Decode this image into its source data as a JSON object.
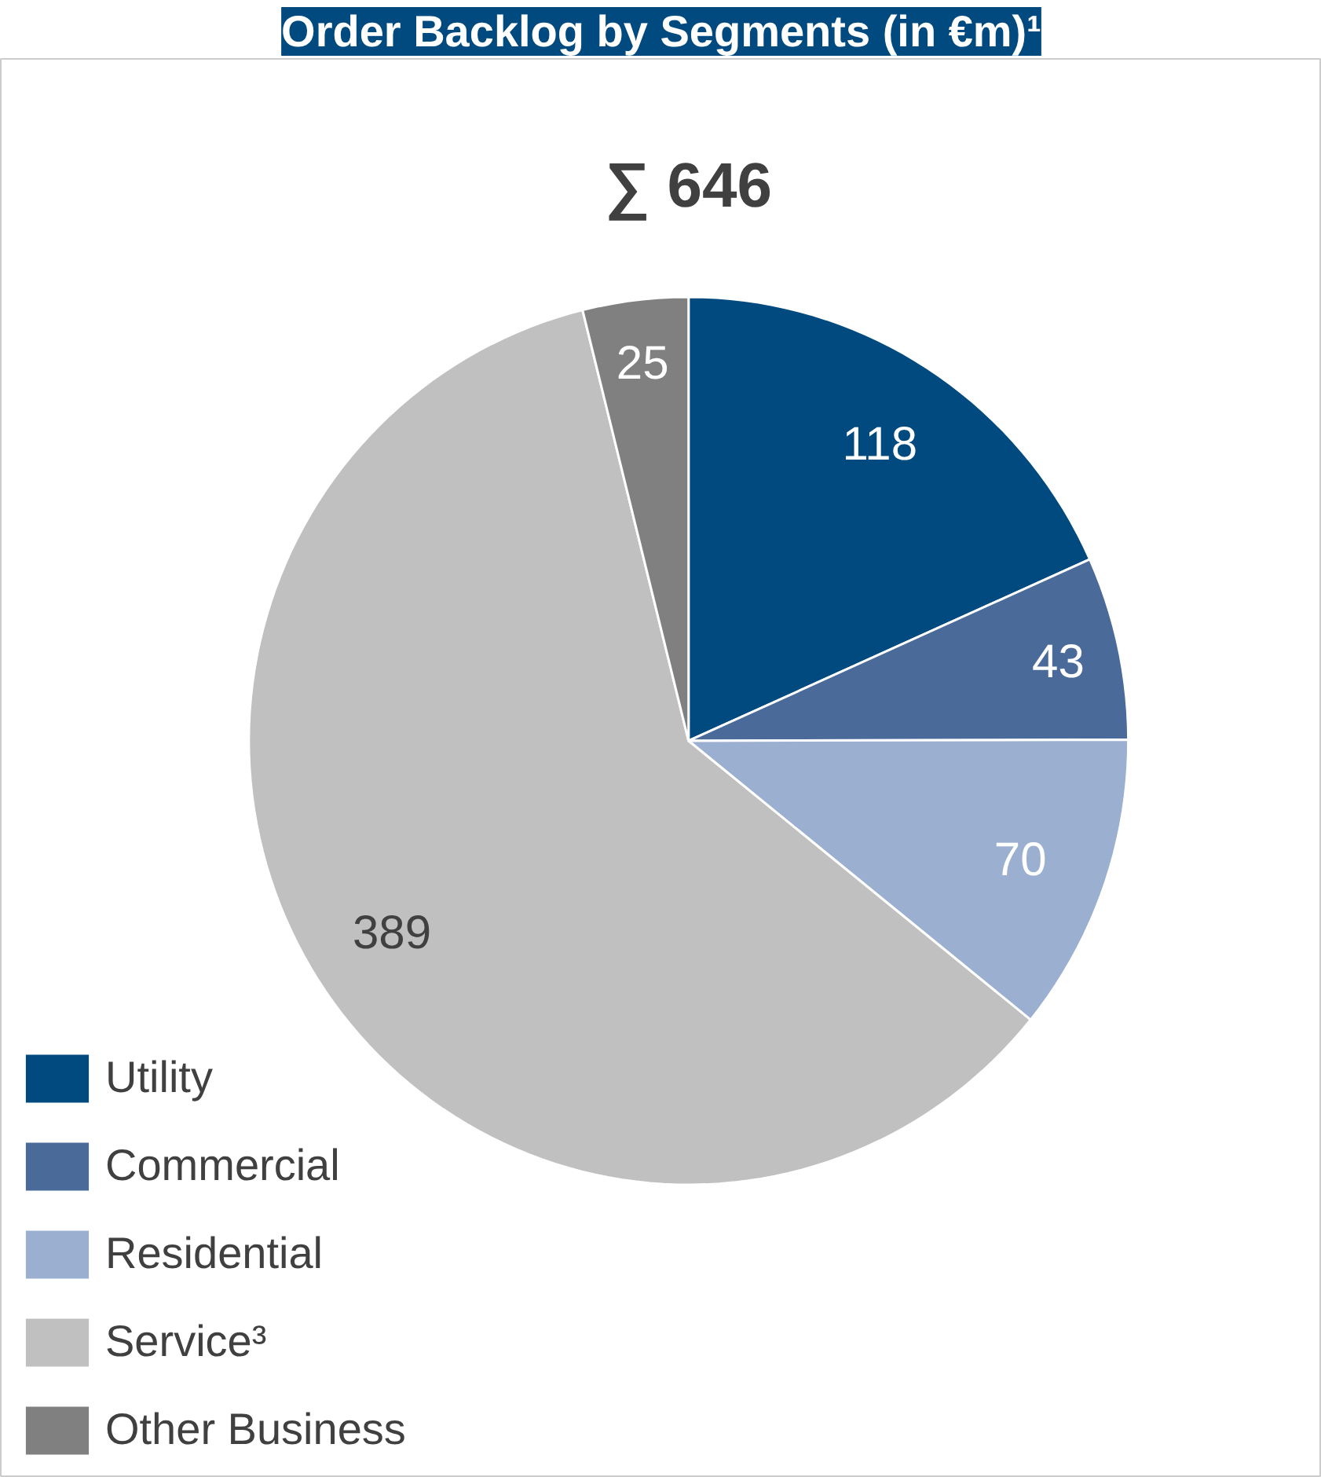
{
  "chart_data": {
    "type": "pie",
    "title": "Order Backlog by Segments (in €m)¹",
    "subtitle": "∑ 646",
    "categories": [
      "Utility",
      "Commercial",
      "Residential",
      "Service³",
      "Other Business"
    ],
    "values": [
      118,
      43,
      70,
      389,
      25
    ],
    "colors": [
      "#004a7f",
      "#4a6a9a",
      "#9bb0d0",
      "#c0c0c0",
      "#808080"
    ],
    "data_labels": true,
    "legend": "bottom left"
  }
}
